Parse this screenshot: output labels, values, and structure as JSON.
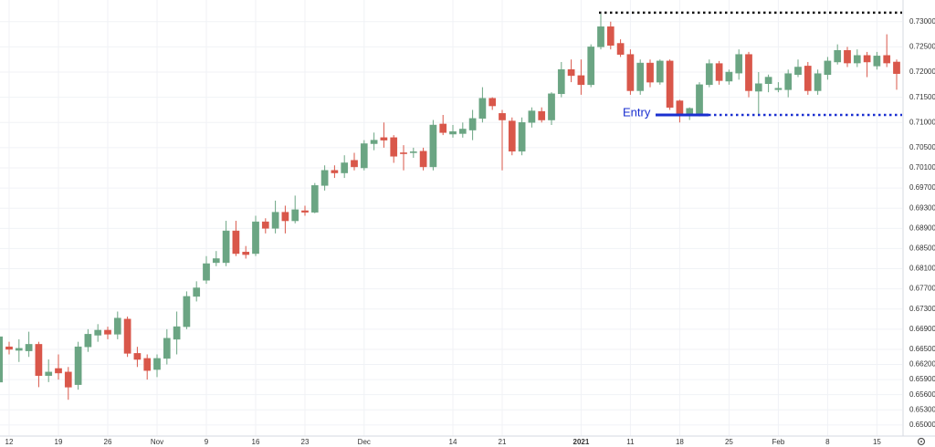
{
  "chart_data": {
    "type": "candlestick",
    "categories": [
      null,
      "12",
      null,
      null,
      null,
      null,
      "19",
      null,
      null,
      null,
      null,
      "26",
      null,
      null,
      null,
      null,
      "Nov",
      null,
      null,
      null,
      null,
      "9",
      null,
      null,
      null,
      null,
      "16",
      null,
      null,
      null,
      null,
      "23",
      null,
      null,
      null,
      null,
      null,
      "Dec",
      null,
      null,
      null,
      null,
      null,
      null,
      null,
      null,
      "14",
      null,
      null,
      null,
      null,
      "21",
      null,
      null,
      null,
      null,
      null,
      null,
      null,
      "2021",
      null,
      null,
      null,
      null,
      "11",
      null,
      null,
      null,
      null,
      "18",
      null,
      null,
      null,
      null,
      "25",
      null,
      null,
      null,
      null,
      "Feb",
      null,
      null,
      null,
      null,
      "8",
      null,
      null,
      null,
      null,
      "15",
      null,
      null
    ],
    "open": [
      0.6585,
      0.6655,
      0.6648,
      0.6647,
      0.666,
      0.6598,
      0.6612,
      0.6605,
      0.658,
      0.6655,
      0.6678,
      0.6688,
      0.668,
      0.671,
      0.6642,
      0.6632,
      0.661,
      0.6632,
      0.667,
      0.6695,
      0.6755,
      0.6787,
      0.6822,
      0.6822,
      0.6885,
      0.6843,
      0.684,
      0.6903,
      0.689,
      0.6922,
      0.6905,
      0.6925,
      0.6922,
      0.6975,
      0.7005,
      0.7,
      0.7025,
      0.701,
      0.7058,
      0.707,
      0.707,
      0.704,
      0.704,
      0.7043,
      0.7012,
      0.7097,
      0.7077,
      0.7078,
      0.7085,
      0.7108,
      0.7148,
      0.7118,
      0.7103,
      0.7043,
      0.71,
      0.7122,
      0.7105,
      0.7157,
      0.7205,
      0.7193,
      0.7175,
      0.725,
      0.729,
      0.7257,
      0.7235,
      0.7163,
      0.7218,
      0.718,
      0.7222,
      0.7143,
      0.7113,
      0.7117,
      0.7175,
      0.7217,
      0.7182,
      0.7198,
      0.7235,
      0.7162,
      0.7177,
      0.7165,
      0.7165,
      0.7195,
      0.7212,
      0.7163,
      0.7195,
      0.722,
      0.7243,
      0.7218,
      0.7233,
      0.7212,
      0.7233,
      0.722
    ],
    "high": [
      0.6685,
      0.6665,
      0.667,
      0.6685,
      0.6665,
      0.663,
      0.664,
      0.6615,
      0.6665,
      0.669,
      0.67,
      0.6695,
      0.6725,
      0.6715,
      0.6655,
      0.664,
      0.664,
      0.669,
      0.6725,
      0.6765,
      0.6785,
      0.6835,
      0.6845,
      0.6905,
      0.6905,
      0.6855,
      0.6915,
      0.691,
      0.6945,
      0.6935,
      0.6955,
      0.6935,
      0.698,
      0.7015,
      0.7015,
      0.7035,
      0.704,
      0.7065,
      0.708,
      0.71,
      0.7075,
      0.7055,
      0.705,
      0.705,
      0.7105,
      0.7115,
      0.7095,
      0.71,
      0.7125,
      0.717,
      0.715,
      0.7125,
      0.711,
      0.711,
      0.713,
      0.713,
      0.716,
      0.722,
      0.7225,
      0.7225,
      0.7255,
      0.7318,
      0.73,
      0.7265,
      0.7245,
      0.7225,
      0.7225,
      0.7225,
      0.7225,
      0.7145,
      0.713,
      0.718,
      0.7225,
      0.7222,
      0.7205,
      0.7245,
      0.724,
      0.72,
      0.7195,
      0.718,
      0.7205,
      0.7225,
      0.722,
      0.7205,
      0.723,
      0.7255,
      0.725,
      0.7245,
      0.724,
      0.724,
      0.7275,
      0.7225
    ],
    "low": [
      0.6575,
      0.664,
      0.6625,
      0.6635,
      0.6575,
      0.6585,
      0.659,
      0.655,
      0.657,
      0.6645,
      0.6665,
      0.667,
      0.667,
      0.6635,
      0.6615,
      0.659,
      0.6595,
      0.662,
      0.664,
      0.669,
      0.6745,
      0.678,
      0.6815,
      0.6815,
      0.6835,
      0.683,
      0.6835,
      0.688,
      0.688,
      0.688,
      0.69,
      0.6915,
      0.692,
      0.6965,
      0.699,
      0.699,
      0.7005,
      0.7005,
      0.7045,
      0.705,
      0.702,
      0.7005,
      0.703,
      0.7005,
      0.7005,
      0.7075,
      0.707,
      0.707,
      0.7065,
      0.71,
      0.7125,
      0.7005,
      0.7035,
      0.7035,
      0.709,
      0.71,
      0.7095,
      0.715,
      0.718,
      0.7155,
      0.717,
      0.7245,
      0.7245,
      0.723,
      0.7155,
      0.7155,
      0.717,
      0.7175,
      0.7125,
      0.71,
      0.7105,
      0.7112,
      0.717,
      0.7175,
      0.7175,
      0.7185,
      0.715,
      0.7115,
      0.716,
      0.716,
      0.715,
      0.719,
      0.7155,
      0.7155,
      0.7185,
      0.7215,
      0.721,
      0.721,
      0.719,
      0.7205,
      0.721,
      0.7165
    ],
    "close": [
      0.6675,
      0.665,
      0.6652,
      0.666,
      0.6598,
      0.6605,
      0.6603,
      0.6575,
      0.6655,
      0.668,
      0.6688,
      0.668,
      0.6712,
      0.6642,
      0.663,
      0.6608,
      0.6632,
      0.6672,
      0.6695,
      0.6755,
      0.6772,
      0.682,
      0.683,
      0.6885,
      0.684,
      0.6838,
      0.6903,
      0.689,
      0.6922,
      0.6905,
      0.6927,
      0.6922,
      0.6975,
      0.7005,
      0.7,
      0.702,
      0.7012,
      0.7058,
      0.7065,
      0.7065,
      0.7033,
      0.7038,
      0.7042,
      0.7012,
      0.7095,
      0.708,
      0.7082,
      0.7087,
      0.7108,
      0.7148,
      0.7133,
      0.7105,
      0.7043,
      0.71,
      0.7123,
      0.7105,
      0.7157,
      0.7205,
      0.7193,
      0.7175,
      0.725,
      0.729,
      0.7253,
      0.7235,
      0.7163,
      0.7218,
      0.718,
      0.7222,
      0.713,
      0.7115,
      0.7128,
      0.7175,
      0.7217,
      0.7183,
      0.72,
      0.7235,
      0.7163,
      0.7177,
      0.719,
      0.7168,
      0.7197,
      0.721,
      0.7163,
      0.7197,
      0.7222,
      0.7243,
      0.7218,
      0.7233,
      0.722,
      0.7232,
      0.7218,
      0.7197
    ],
    "up_color": "#6ba583",
    "down_color": "#d9574a",
    "ylim": [
      0.6478,
      0.7343
    ],
    "yticks": [
      {
        "value": 0.73,
        "label": "0.73000"
      },
      {
        "value": 0.725,
        "label": "0.72500"
      },
      {
        "value": 0.72,
        "label": "0.72000"
      },
      {
        "value": 0.715,
        "label": "0.71500"
      },
      {
        "value": 0.71,
        "label": "0.71000"
      },
      {
        "value": 0.705,
        "label": "0.70500"
      },
      {
        "value": 0.701,
        "label": "0.70100"
      },
      {
        "value": 0.697,
        "label": "0.69700"
      },
      {
        "value": 0.693,
        "label": "0.69300"
      },
      {
        "value": 0.689,
        "label": "0.68900"
      },
      {
        "value": 0.685,
        "label": "0.68500"
      },
      {
        "value": 0.681,
        "label": "0.68100"
      },
      {
        "value": 0.677,
        "label": "0.67700"
      },
      {
        "value": 0.673,
        "label": "0.67300"
      },
      {
        "value": 0.669,
        "label": "0.66900"
      },
      {
        "value": 0.665,
        "label": "0.66500"
      },
      {
        "value": 0.662,
        "label": "0.66200"
      },
      {
        "value": 0.659,
        "label": "0.65900"
      },
      {
        "value": 0.656,
        "label": "0.65600"
      },
      {
        "value": 0.653,
        "label": "0.65300"
      },
      {
        "value": 0.65,
        "label": "0.65000"
      }
    ],
    "grid": true,
    "levels": [
      {
        "value": 0.7318,
        "color": "#111111"
      },
      {
        "value": 0.7115,
        "color": "#1a2fd0",
        "label": "Entry"
      }
    ]
  }
}
